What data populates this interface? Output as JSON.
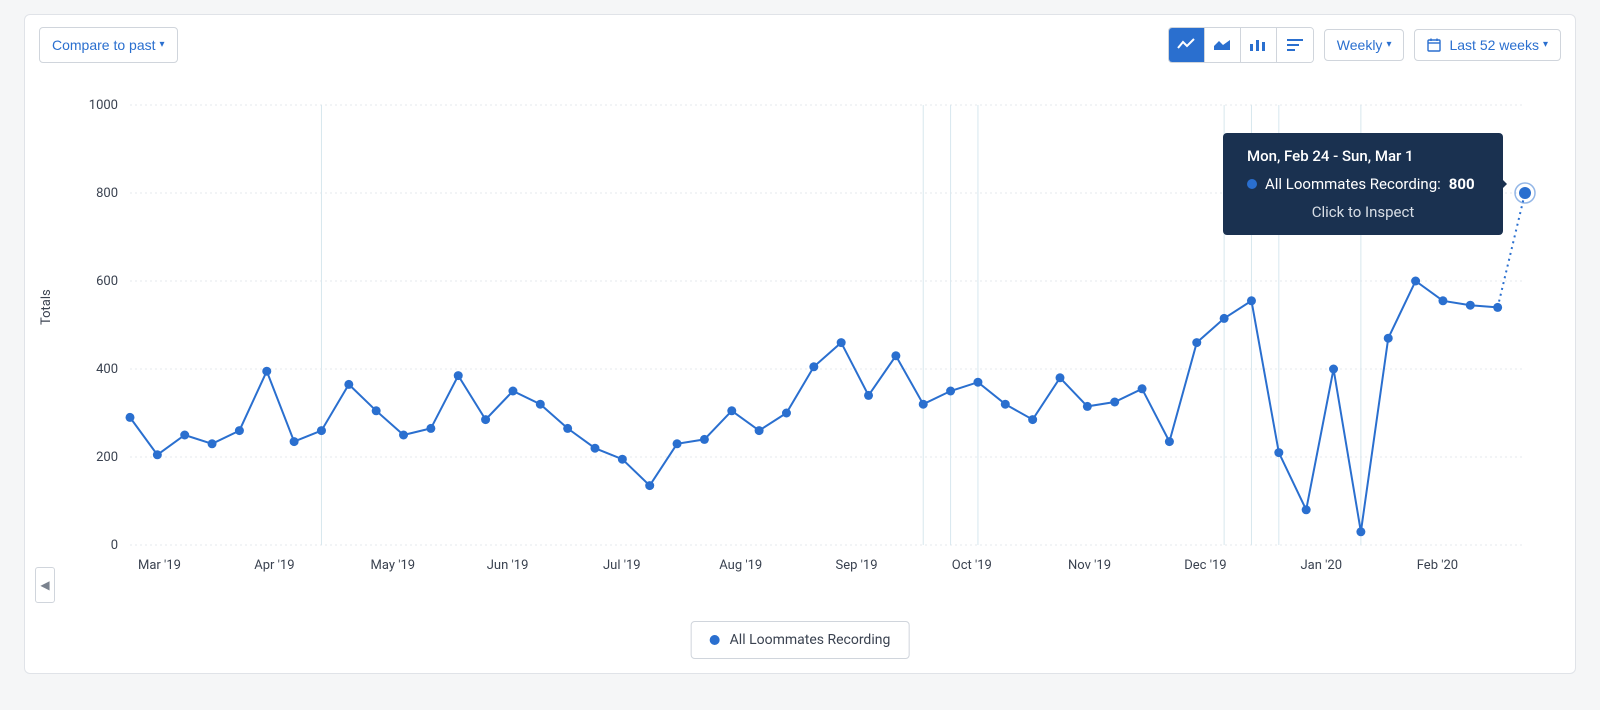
{
  "toolbar": {
    "compare_label": "Compare to past",
    "weekly_label": "Weekly",
    "range_label": "Last 52 weeks"
  },
  "chart": {
    "type": "line",
    "ylabel": "Totals",
    "yaxis": {
      "min": 0,
      "max": 1000,
      "step": 200,
      "ticks": [
        0,
        200,
        400,
        600,
        800,
        1000
      ]
    },
    "xaxis": {
      "labels": [
        "Mar '19",
        "Apr '19",
        "May '19",
        "Jun '19",
        "Jul '19",
        "Aug '19",
        "Sep '19",
        "Oct '19",
        "Nov '19",
        "Dec '19",
        "Jan '20",
        "Feb '20"
      ]
    },
    "series": {
      "name": "All Loommates Recording",
      "color": "#2a6fcf",
      "marker_radius": 4.5,
      "line_width": 2,
      "values": [
        290,
        205,
        250,
        230,
        260,
        395,
        235,
        260,
        365,
        305,
        250,
        265,
        385,
        285,
        350,
        320,
        265,
        220,
        195,
        135,
        230,
        240,
        305,
        260,
        300,
        405,
        460,
        340,
        430,
        320,
        350,
        370,
        320,
        285,
        380,
        315,
        325,
        355,
        235,
        460,
        515,
        555,
        210,
        80,
        400,
        30,
        470,
        600,
        555,
        545,
        540,
        800
      ]
    },
    "vlines_at_indices": [
      7,
      29,
      30,
      31,
      40,
      41,
      42,
      45
    ],
    "colors": {
      "grid": "#e6e8ec",
      "vline": "#d7e7ee",
      "axis_text": "#3a4250",
      "background": "#ffffff"
    },
    "last_point_halo": true
  },
  "tooltip": {
    "date_range": "Mon, Feb 24 - Sun, Mar 1",
    "series_label": "All Loommates Recording:",
    "value": "800",
    "inspect_label": "Click to Inspect",
    "dot_color": "#2a6fcf"
  },
  "legend": {
    "label": "All Loommates Recording",
    "dot_color": "#2a6fcf"
  }
}
